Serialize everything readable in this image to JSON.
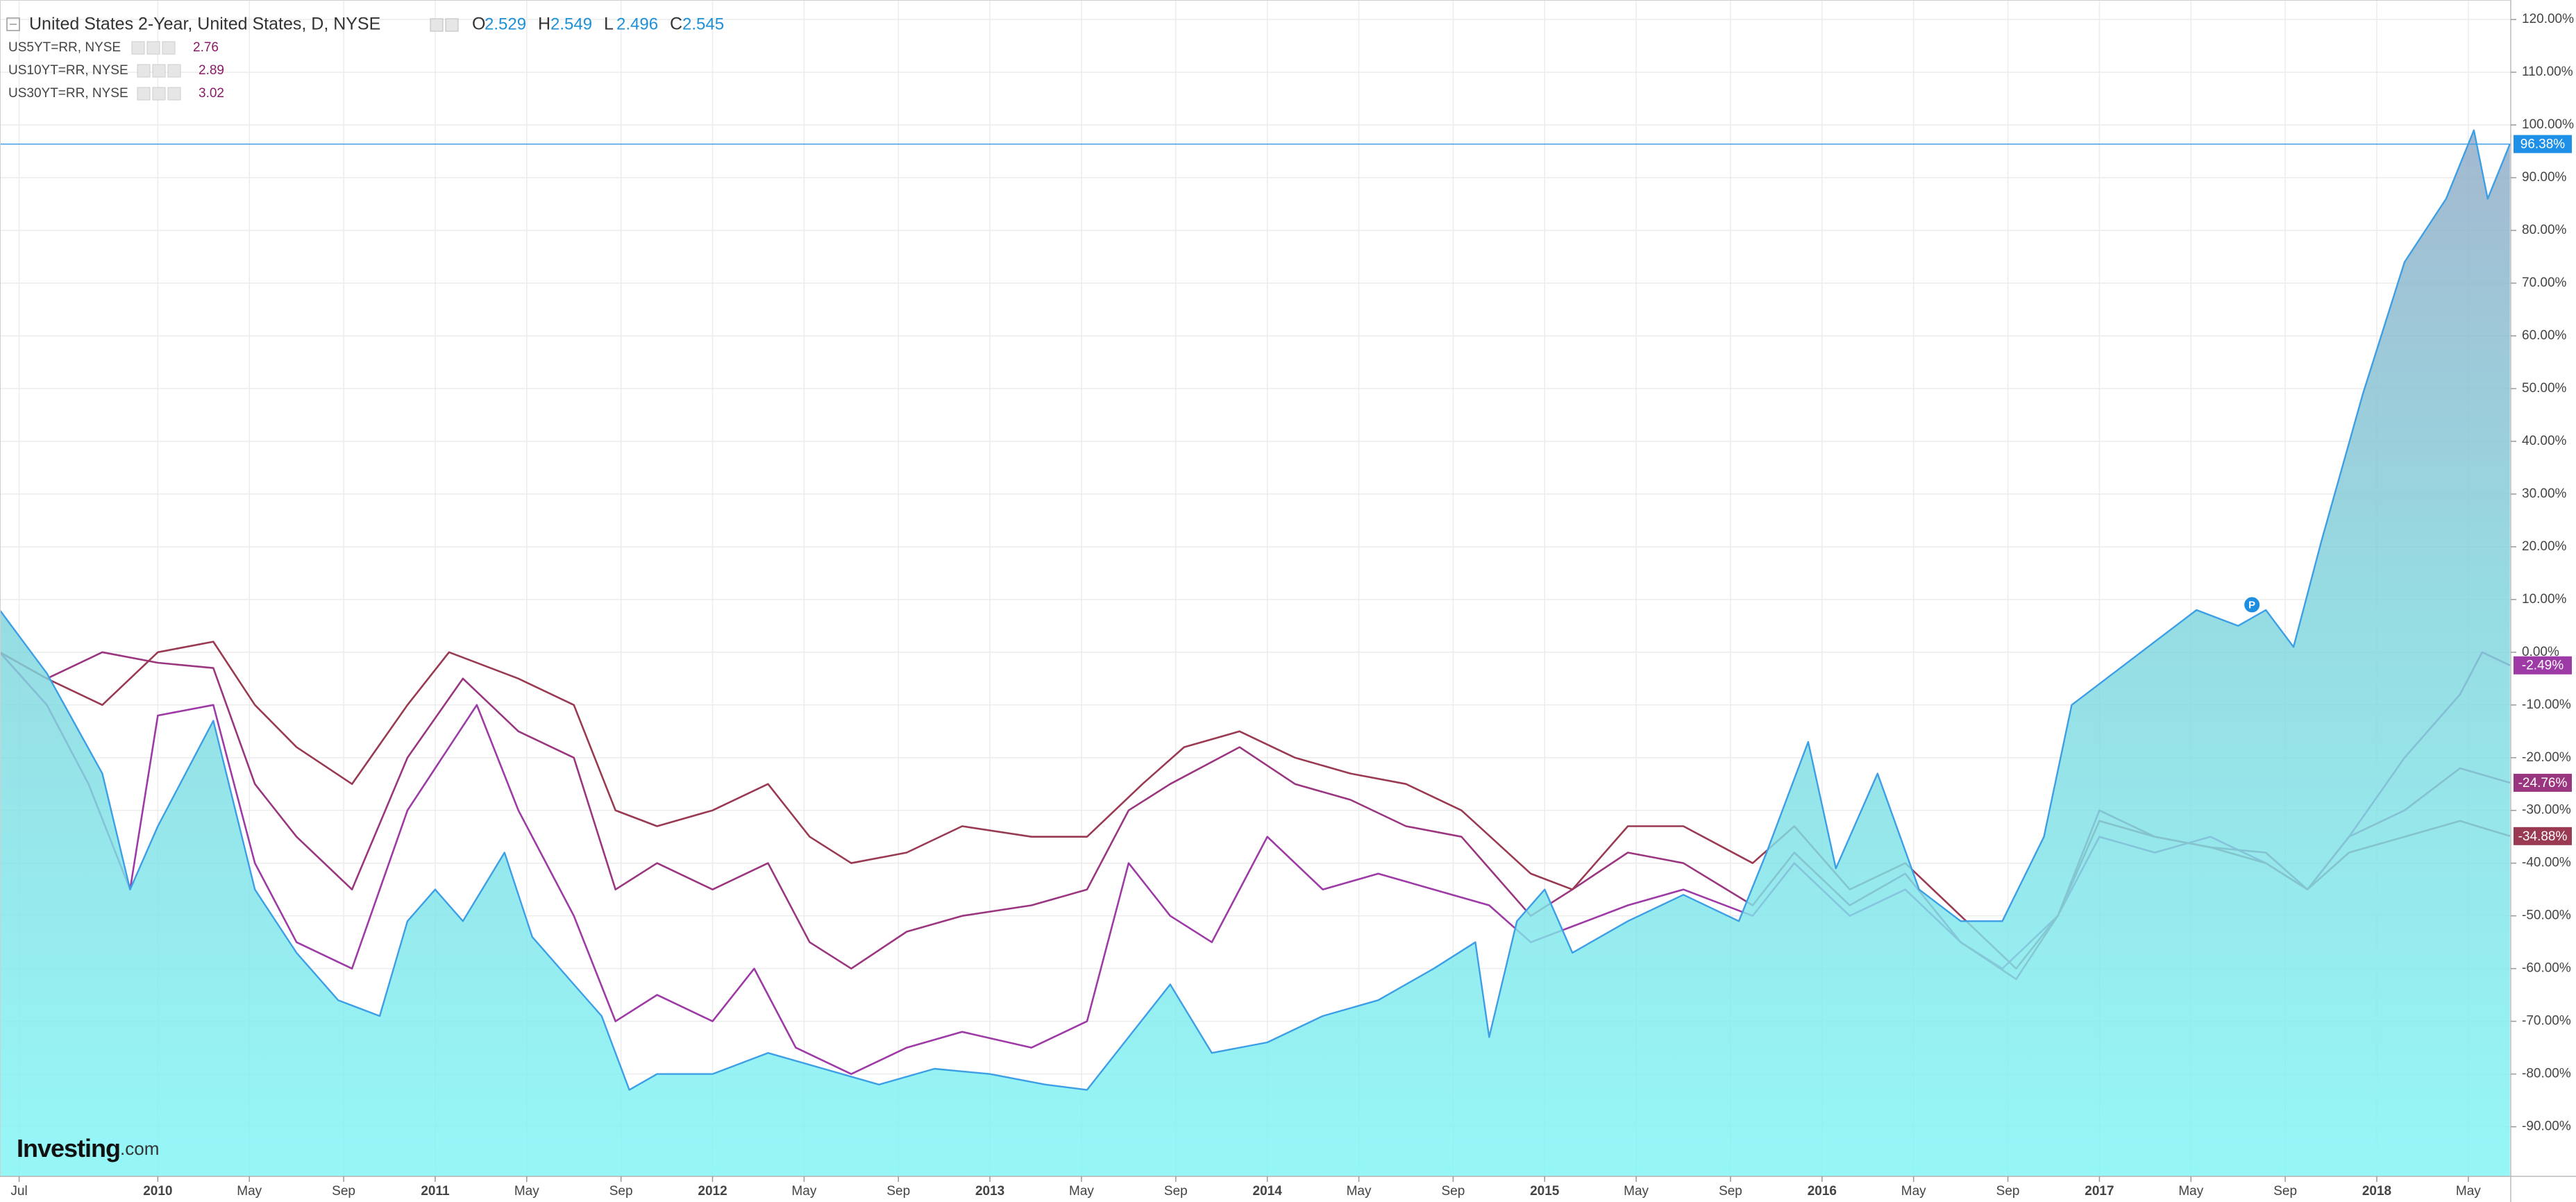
{
  "chart_data": {
    "type": "line",
    "title": "United States 2-Year, United States, D, NYSE",
    "ohlc": [
      {
        "label": "O",
        "value": 2.529
      },
      {
        "label": "H",
        "value": 2.549
      },
      {
        "label": "L",
        "value": 2.496
      },
      {
        "label": "C",
        "value": 2.545
      }
    ],
    "xlim": [
      2009.431,
      2018.483
    ],
    "ylim": [
      -99.4,
      123.7
    ],
    "grid": true,
    "xticks": [
      {
        "value": 2009.5,
        "label": "Jul"
      },
      {
        "value": 2010,
        "label": "2010"
      },
      {
        "value": 2010.33,
        "label": "May"
      },
      {
        "value": 2010.67,
        "label": "Sep"
      },
      {
        "value": 2011,
        "label": "2011"
      },
      {
        "value": 2011.33,
        "label": "May"
      },
      {
        "value": 2011.67,
        "label": "Sep"
      },
      {
        "value": 2012,
        "label": "2012"
      },
      {
        "value": 2012.33,
        "label": "May"
      },
      {
        "value": 2012.67,
        "label": "Sep"
      },
      {
        "value": 2013,
        "label": "2013"
      },
      {
        "value": 2013.33,
        "label": "May"
      },
      {
        "value": 2013.67,
        "label": "Sep"
      },
      {
        "value": 2014,
        "label": "2014"
      },
      {
        "value": 2014.33,
        "label": "May"
      },
      {
        "value": 2014.67,
        "label": "Sep"
      },
      {
        "value": 2015,
        "label": "2015"
      },
      {
        "value": 2015.33,
        "label": "May"
      },
      {
        "value": 2015.67,
        "label": "Sep"
      },
      {
        "value": 2016,
        "label": "2016"
      },
      {
        "value": 2016.33,
        "label": "May"
      },
      {
        "value": 2016.67,
        "label": "Sep"
      },
      {
        "value": 2017,
        "label": "2017"
      },
      {
        "value": 2017.33,
        "label": "May"
      },
      {
        "value": 2017.67,
        "label": "Sep"
      },
      {
        "value": 2018,
        "label": "2018"
      },
      {
        "value": 2018.33,
        "label": "May"
      }
    ],
    "yticks": [
      {
        "value": -90,
        "label": "-90.00%"
      },
      {
        "value": -80,
        "label": "-80.00%"
      },
      {
        "value": -70,
        "label": "-70.00%"
      },
      {
        "value": -60,
        "label": "-60.00%"
      },
      {
        "value": -50,
        "label": "-50.00%"
      },
      {
        "value": -40,
        "label": "-40.00%"
      },
      {
        "value": -30,
        "label": "-30.00%"
      },
      {
        "value": -20,
        "label": "-20.00%"
      },
      {
        "value": -10,
        "label": "-10.00%"
      },
      {
        "value": 0,
        "label": "0.00%"
      },
      {
        "value": 10,
        "label": "10.00%"
      },
      {
        "value": 20,
        "label": "20.00%"
      },
      {
        "value": 30,
        "label": "30.00%"
      },
      {
        "value": 40,
        "label": "40.00%"
      },
      {
        "value": 50,
        "label": "50.00%"
      },
      {
        "value": 60,
        "label": "60.00%"
      },
      {
        "value": 70,
        "label": "70.00%"
      },
      {
        "value": 80,
        "label": "80.00%"
      },
      {
        "value": 90,
        "label": "90.00%"
      },
      {
        "value": 100,
        "label": "100.00%"
      },
      {
        "value": 110,
        "label": "110.00%"
      },
      {
        "value": 120,
        "label": "120.00%"
      }
    ],
    "series": [
      {
        "name": "United States 2-Year",
        "type": "area",
        "color": "#3c9fe6",
        "x": [
          2009.43,
          2009.6,
          2009.8,
          2009.9,
          2010.0,
          2010.2,
          2010.35,
          2010.5,
          2010.65,
          2010.8,
          2010.9,
          2011.0,
          2011.1,
          2011.25,
          2011.35,
          2011.5,
          2011.6,
          2011.7,
          2011.8,
          2012.0,
          2012.2,
          2012.4,
          2012.6,
          2012.8,
          2013.0,
          2013.2,
          2013.35,
          2013.5,
          2013.65,
          2013.8,
          2014.0,
          2014.2,
          2014.4,
          2014.6,
          2014.75,
          2014.8,
          2014.9,
          2015.0,
          2015.1,
          2015.3,
          2015.5,
          2015.7,
          2015.8,
          2015.95,
          2016.05,
          2016.2,
          2016.35,
          2016.5,
          2016.65,
          2016.8,
          2016.9,
          2017.05,
          2017.2,
          2017.35,
          2017.5,
          2017.6,
          2017.7,
          2017.8,
          2017.95,
          2018.1,
          2018.25,
          2018.35,
          2018.4,
          2018.48
        ],
        "values": [
          8,
          -4,
          -23,
          -45,
          -33,
          -13,
          -45,
          -57,
          -66,
          -69,
          -51,
          -45,
          -51,
          -38,
          -54,
          -63,
          -69,
          -83,
          -80,
          -80,
          -76,
          -79,
          -82,
          -79,
          -80,
          -82,
          -83,
          -73,
          -63,
          -76,
          -74,
          -69,
          -66,
          -60,
          -55,
          -73,
          -51,
          -45,
          -57,
          -51,
          -46,
          -51,
          -38,
          -17,
          -41,
          -23,
          -45,
          -51,
          -51,
          -35,
          -10,
          -4,
          2,
          8,
          5,
          8,
          1,
          21,
          49,
          74,
          86,
          99,
          86,
          96.38
        ],
        "end_label": {
          "value": 96.38,
          "label": "96.38%"
        }
      },
      {
        "name": "US5YT=RR, NYSE",
        "last": 2.76,
        "color": "#9d3aa6",
        "x": [
          2009.43,
          2009.6,
          2009.75,
          2009.9,
          2010.0,
          2010.2,
          2010.35,
          2010.5,
          2010.7,
          2010.9,
          2011.0,
          2011.15,
          2011.3,
          2011.5,
          2011.65,
          2011.8,
          2012.0,
          2012.15,
          2012.3,
          2012.5,
          2012.7,
          2012.9,
          2013.15,
          2013.35,
          2013.5,
          2013.65,
          2013.8,
          2014.0,
          2014.2,
          2014.4,
          2014.6,
          2014.8,
          2014.95,
          2015.1,
          2015.3,
          2015.5,
          2015.75,
          2015.9,
          2016.1,
          2016.3,
          2016.5,
          2016.65,
          2016.85,
          2017.0,
          2017.2,
          2017.4,
          2017.6,
          2017.75,
          2017.9,
          2018.1,
          2018.3,
          2018.38,
          2018.48
        ],
        "values": [
          0,
          -10,
          -25,
          -45,
          -12,
          -10,
          -40,
          -55,
          -60,
          -30,
          -22,
          -10,
          -30,
          -50,
          -70,
          -65,
          -70,
          -60,
          -75,
          -80,
          -75,
          -72,
          -75,
          -70,
          -40,
          -50,
          -55,
          -35,
          -45,
          -42,
          -45,
          -48,
          -55,
          -52,
          -48,
          -45,
          -50,
          -40,
          -50,
          -45,
          -55,
          -60,
          -50,
          -35,
          -38,
          -35,
          -40,
          -45,
          -35,
          -20,
          -8,
          0,
          -2.49
        ],
        "end_label": {
          "value": -2.49,
          "label": "-2.49%"
        }
      },
      {
        "name": "US10YT=RR, NYSE",
        "last": 2.89,
        "color": "#9a3680",
        "x": [
          2009.43,
          2009.6,
          2009.8,
          2010.0,
          2010.2,
          2010.35,
          2010.5,
          2010.7,
          2010.9,
          2011.1,
          2011.3,
          2011.5,
          2011.65,
          2011.8,
          2012.0,
          2012.2,
          2012.35,
          2012.5,
          2012.7,
          2012.9,
          2013.15,
          2013.35,
          2013.5,
          2013.65,
          2013.9,
          2014.1,
          2014.3,
          2014.5,
          2014.7,
          2014.95,
          2015.1,
          2015.3,
          2015.5,
          2015.75,
          2015.9,
          2016.1,
          2016.3,
          2016.5,
          2016.7,
          2016.85,
          2017.0,
          2017.2,
          2017.4,
          2017.6,
          2017.75,
          2017.9,
          2018.1,
          2018.3,
          2018.48
        ],
        "values": [
          0,
          -5,
          0,
          -2,
          -3,
          -25,
          -35,
          -45,
          -20,
          -5,
          -15,
          -20,
          -45,
          -40,
          -45,
          -40,
          -55,
          -60,
          -53,
          -50,
          -48,
          -45,
          -30,
          -25,
          -18,
          -25,
          -28,
          -33,
          -35,
          -50,
          -45,
          -38,
          -40,
          -48,
          -38,
          -48,
          -42,
          -55,
          -62,
          -50,
          -30,
          -35,
          -37,
          -38,
          -45,
          -35,
          -30,
          -22,
          -24.76
        ],
        "end_label": {
          "value": -24.76,
          "label": "-24.76%"
        }
      },
      {
        "name": "US30YT=RR, NYSE",
        "last": 3.02,
        "color": "#993a52",
        "x": [
          2009.43,
          2009.6,
          2009.8,
          2010.0,
          2010.2,
          2010.35,
          2010.5,
          2010.7,
          2010.9,
          2011.05,
          2011.3,
          2011.5,
          2011.65,
          2011.8,
          2012.0,
          2012.2,
          2012.35,
          2012.5,
          2012.7,
          2012.9,
          2013.15,
          2013.35,
          2013.55,
          2013.7,
          2013.9,
          2014.1,
          2014.3,
          2014.5,
          2014.7,
          2014.95,
          2015.1,
          2015.3,
          2015.5,
          2015.75,
          2015.9,
          2016.1,
          2016.3,
          2016.5,
          2016.7,
          2016.85,
          2017.0,
          2017.2,
          2017.4,
          2017.6,
          2017.75,
          2017.9,
          2018.1,
          2018.3,
          2018.48
        ],
        "values": [
          0,
          -5,
          -10,
          0,
          2,
          -10,
          -18,
          -25,
          -10,
          0,
          -5,
          -10,
          -30,
          -33,
          -30,
          -25,
          -35,
          -40,
          -38,
          -33,
          -35,
          -35,
          -25,
          -18,
          -15,
          -20,
          -23,
          -25,
          -30,
          -42,
          -45,
          -33,
          -33,
          -40,
          -33,
          -45,
          -40,
          -50,
          -60,
          -50,
          -32,
          -35,
          -37,
          -40,
          -45,
          -38,
          -35,
          -32,
          -34.88
        ],
        "end_label": {
          "value": -34.88,
          "label": "-34.88%"
        }
      }
    ],
    "annotations": [
      {
        "text": "P",
        "x": 2017.55,
        "y": 9
      }
    ],
    "watermark": {
      "brand": "Investing",
      "suffix": ".com"
    }
  }
}
